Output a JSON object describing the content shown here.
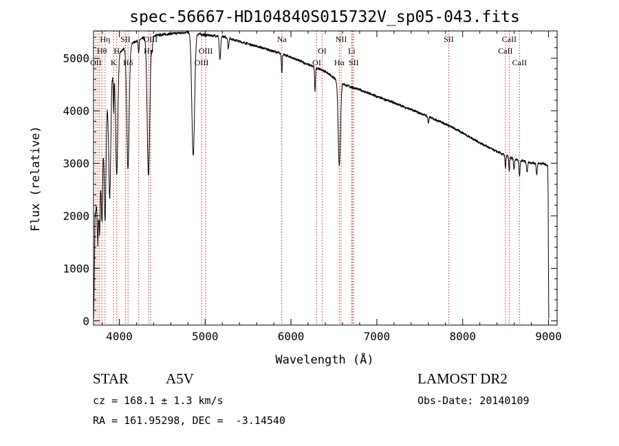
{
  "chart_data": {
    "type": "line",
    "title": "spec-56667-HD104840S015732V_sp05-043.fits",
    "xlabel": "Wavelength (Å)",
    "ylabel": "Flux (relative)",
    "xlim": [
      3700,
      9100
    ],
    "ylim": [
      -80,
      5520
    ],
    "xticks": [
      4000,
      5000,
      6000,
      7000,
      8000,
      9000
    ],
    "yticks": [
      0,
      1000,
      2000,
      3000,
      4000,
      5000
    ],
    "grid": false,
    "continuum": [
      [
        3720,
        2000
      ],
      [
        3800,
        3300
      ],
      [
        3850,
        4050
      ],
      [
        3900,
        4600
      ],
      [
        3950,
        4900
      ],
      [
        4000,
        5100
      ],
      [
        4100,
        5250
      ],
      [
        4300,
        5400
      ],
      [
        4500,
        5450
      ],
      [
        4700,
        5480
      ],
      [
        4820,
        5500
      ],
      [
        5000,
        5440
      ],
      [
        5200,
        5420
      ],
      [
        5400,
        5320
      ],
      [
        5600,
        5230
      ],
      [
        5800,
        5130
      ],
      [
        6000,
        5020
      ],
      [
        6200,
        4880
      ],
      [
        6400,
        4750
      ],
      [
        6550,
        4560
      ],
      [
        6650,
        4480
      ],
      [
        6800,
        4400
      ],
      [
        7000,
        4270
      ],
      [
        7200,
        4150
      ],
      [
        7400,
        4020
      ],
      [
        7600,
        3890
      ],
      [
        7800,
        3750
      ],
      [
        8000,
        3580
      ],
      [
        8200,
        3390
      ],
      [
        8400,
        3220
      ],
      [
        8600,
        3080
      ],
      [
        8800,
        3010
      ],
      [
        8950,
        2990
      ],
      [
        8990,
        2950
      ]
    ],
    "absorption": [
      {
        "center": 3750,
        "depth": 1000,
        "width": 7
      },
      {
        "center": 3771,
        "depth": 1200,
        "width": 7
      },
      {
        "center": 3798,
        "depth": 1400,
        "width": 8
      },
      {
        "center": 3835,
        "depth": 1900,
        "width": 10
      },
      {
        "center": 3889,
        "depth": 2100,
        "width": 12
      },
      {
        "center": 3934,
        "depth": 800,
        "width": 4
      },
      {
        "center": 3970,
        "depth": 2200,
        "width": 13
      },
      {
        "center": 4101,
        "depth": 2350,
        "width": 14
      },
      {
        "center": 4226,
        "depth": 250,
        "width": 5
      },
      {
        "center": 4340,
        "depth": 2650,
        "width": 15
      },
      {
        "center": 4383,
        "depth": 250,
        "width": 6
      },
      {
        "center": 4861,
        "depth": 2350,
        "width": 16
      },
      {
        "center": 5173,
        "depth": 450,
        "width": 8
      },
      {
        "center": 5270,
        "depth": 200,
        "width": 6
      },
      {
        "center": 5893,
        "depth": 350,
        "width": 5
      },
      {
        "center": 6280,
        "depth": 450,
        "width": 5
      },
      {
        "center": 6563,
        "depth": 1600,
        "width": 13
      },
      {
        "center": 7600,
        "depth": 120,
        "width": 6
      },
      {
        "center": 8498,
        "depth": 250,
        "width": 5
      },
      {
        "center": 8542,
        "depth": 280,
        "width": 5
      },
      {
        "center": 8598,
        "depth": 200,
        "width": 5
      },
      {
        "center": 8662,
        "depth": 300,
        "width": 6
      },
      {
        "center": 8750,
        "depth": 200,
        "width": 6
      },
      {
        "center": 8863,
        "depth": 220,
        "width": 6
      }
    ],
    "spectral_lines": [
      {
        "label": "Hη",
        "wavelength": 3835,
        "row": 0
      },
      {
        "label": "Hθ",
        "wavelength": 3798,
        "row": 1
      },
      {
        "label": "OII",
        "wavelength": 3727,
        "row": 2
      },
      {
        "label": "SII",
        "wavelength": 4072,
        "row": 0
      },
      {
        "label": "H",
        "wavelength": 3970,
        "row": 1
      },
      {
        "label": "K",
        "wavelength": 3934,
        "row": 2
      },
      {
        "label": "Hδ",
        "wavelength": 4102,
        "row": 2
      },
      {
        "label": "OIII",
        "wavelength": 4363,
        "row": 0
      },
      {
        "label": "Hγ",
        "wavelength": 4341,
        "row": 1
      },
      {
        "label": "OIII",
        "wavelength": 5007,
        "row": 1
      },
      {
        "label": "OIII",
        "wavelength": 4959,
        "row": 2
      },
      {
        "label": "Na",
        "wavelength": 5893,
        "row": 0
      },
      {
        "label": "OI",
        "wavelength": 6363,
        "row": 1
      },
      {
        "label": "OI",
        "wavelength": 6300,
        "row": 2
      },
      {
        "label": "NII",
        "wavelength": 6584,
        "row": 0
      },
      {
        "label": "Li",
        "wavelength": 6707,
        "row": 1
      },
      {
        "label": "Hα",
        "wavelength": 6563,
        "row": 2
      },
      {
        "label": "SII",
        "wavelength": 6731,
        "row": 2
      },
      {
        "label": "SII",
        "wavelength": 7837,
        "row": 0
      },
      {
        "label": "CaII",
        "wavelength": 8542,
        "row": 0
      },
      {
        "label": "CaII",
        "wavelength": 8498,
        "row": 1
      },
      {
        "label": "CaII",
        "wavelength": 8662,
        "row": 2
      }
    ],
    "extra_line_markers": [
      3750,
      3771,
      4226,
      6716
    ]
  },
  "info": {
    "object_class": "STAR",
    "subclass": "A5V",
    "survey": "LAMOST DR2",
    "redshift": "cz = 168.1 ± 1.3 km/s",
    "obs_date": "Obs-Date: 20140109",
    "coords": "RA = 161.95298, DEC =  -3.14540"
  }
}
